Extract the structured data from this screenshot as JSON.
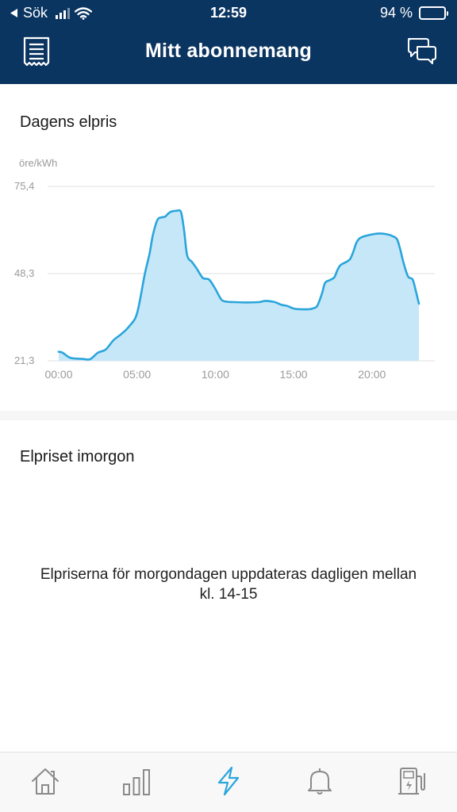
{
  "status_bar": {
    "back_label": "Sök",
    "time": "12:59",
    "battery": "94 %",
    "battery_level": 0.94
  },
  "header": {
    "title": "Mitt abonnemang",
    "left_icon": "receipt-icon",
    "right_icon": "chat-bubbles-icon"
  },
  "today": {
    "title": "Dagens elpris"
  },
  "chart_data": {
    "type": "area",
    "ylabel": "öre/kWh",
    "ylim": [
      21.3,
      75.4
    ],
    "yticks": [
      "75,4",
      "48,3",
      "21,3"
    ],
    "ytick_values": [
      75.4,
      48.3,
      21.3
    ],
    "xticks": [
      "00:00",
      "05:00",
      "10:00",
      "15:00",
      "20:00"
    ],
    "xtick_values": [
      0,
      5,
      10,
      15,
      20
    ],
    "xlim": [
      0,
      23
    ],
    "grid": true,
    "color": "#2aa5dc",
    "fill_color": "#c6e7f7",
    "x": [
      0,
      0.25,
      0.75,
      1.5,
      2,
      2.5,
      3,
      3.5,
      4,
      4.5,
      5,
      5.5,
      5.8,
      6,
      6.3,
      6.6,
      6.8,
      7,
      7.2,
      7.5,
      7.8,
      8,
      8.2,
      8.5,
      8.8,
      9.2,
      9.6,
      10,
      10.4,
      10.8,
      11.2,
      12,
      12.8,
      13.2,
      13.8,
      14.2,
      14.6,
      15,
      15.4,
      16,
      16.2,
      16.5,
      16.8,
      17,
      17.3,
      17.6,
      17.8,
      18,
      18.3,
      18.6,
      18.8,
      19,
      19.2,
      19.5,
      20,
      20.5,
      21,
      21.3,
      21.6,
      21.8,
      22,
      22.3,
      22.6,
      22.8,
      23
    ],
    "y": [
      24.1,
      23.8,
      22.2,
      21.9,
      21.8,
      23.8,
      24.8,
      27.7,
      29.6,
      32.0,
      36.0,
      48.3,
      54.5,
      60.0,
      65.0,
      65.8,
      66.0,
      67.0,
      67.6,
      67.8,
      67.5,
      62.0,
      54.0,
      52.0,
      50.0,
      47.0,
      46.5,
      43.6,
      40.2,
      39.6,
      39.5,
      39.4,
      39.5,
      39.9,
      39.5,
      38.7,
      38.3,
      37.5,
      37.3,
      37.3,
      37.5,
      38.3,
      42.0,
      45.4,
      46.3,
      47.2,
      49.5,
      51.0,
      51.8,
      52.8,
      55.0,
      57.8,
      59.2,
      59.9,
      60.5,
      60.8,
      60.5,
      60.0,
      59.0,
      56.0,
      52.0,
      47.5,
      46.5,
      43.0,
      39.0
    ]
  },
  "tomorrow": {
    "title": "Elpriset imorgon",
    "message": "Elpriserna för morgondagen uppdateras dagligen mellan kl. 14-15"
  },
  "tabbar": {
    "items": [
      {
        "icon": "home-icon"
      },
      {
        "icon": "bar-chart-icon"
      },
      {
        "icon": "lightning-icon",
        "active": true
      },
      {
        "icon": "bell-icon"
      },
      {
        "icon": "charging-station-icon"
      }
    ],
    "active_color": "#2aa5dc",
    "inactive_color": "#8a8a8a"
  }
}
